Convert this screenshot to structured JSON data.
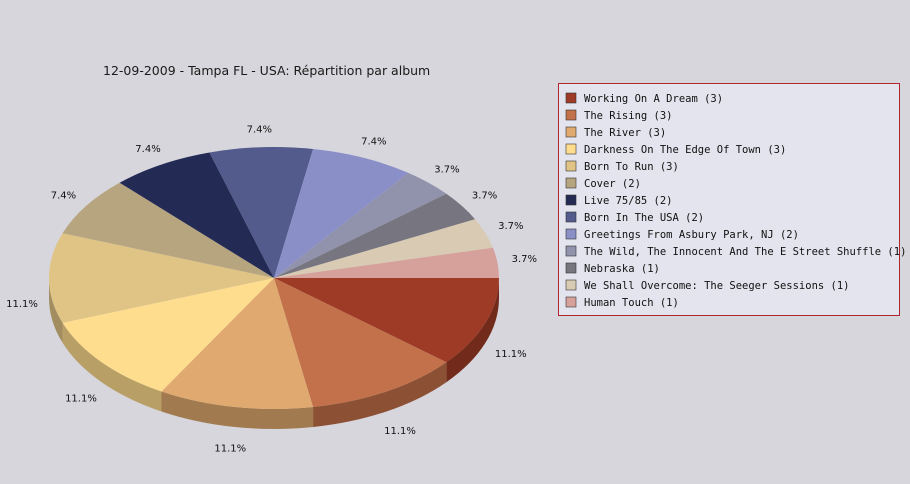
{
  "chart_data": {
    "type": "pie",
    "title": "12-09-2009 - Tampa FL - USA:  Répartition par album",
    "slices": [
      {
        "label": "Working On A Dream (3)",
        "value": 3,
        "percent_label": "11.1%",
        "color": "#9e3b26"
      },
      {
        "label": "The Rising (3)",
        "value": 3,
        "percent_label": "11.1%",
        "color": "#c2714a"
      },
      {
        "label": "The River (3)",
        "value": 3,
        "percent_label": "11.1%",
        "color": "#e0a96f"
      },
      {
        "label": "Darkness On The Edge Of Town (3)",
        "value": 3,
        "percent_label": "11.1%",
        "color": "#ffdd8e"
      },
      {
        "label": "Born To Run (3)",
        "value": 3,
        "percent_label": "11.1%",
        "color": "#e0c486"
      },
      {
        "label": "Cover (2)",
        "value": 2,
        "percent_label": "7.4%",
        "color": "#b6a57f"
      },
      {
        "label": "Live 75/85 (2)",
        "value": 2,
        "percent_label": "7.4%",
        "color": "#232b55"
      },
      {
        "label": "Born In The USA (2)",
        "value": 2,
        "percent_label": "7.4%",
        "color": "#535a8c"
      },
      {
        "label": "Greetings From Asbury Park, NJ (2)",
        "value": 2,
        "percent_label": "7.4%",
        "color": "#8b8fc8"
      },
      {
        "label": "The Wild, The Innocent And The E Street Shuffle (1)",
        "value": 1,
        "percent_label": "3.7%",
        "color": "#9192ac"
      },
      {
        "label": "Nebraska (1)",
        "value": 1,
        "percent_label": "3.7%",
        "color": "#777680"
      },
      {
        "label": "We Shall Overcome: The Seeger Sessions (1)",
        "value": 1,
        "percent_label": "3.7%",
        "color": "#d9cbb3"
      },
      {
        "label": "Human Touch (1)",
        "value": 1,
        "percent_label": "3.7%",
        "color": "#d6a19b"
      }
    ],
    "legend_position": "right"
  }
}
